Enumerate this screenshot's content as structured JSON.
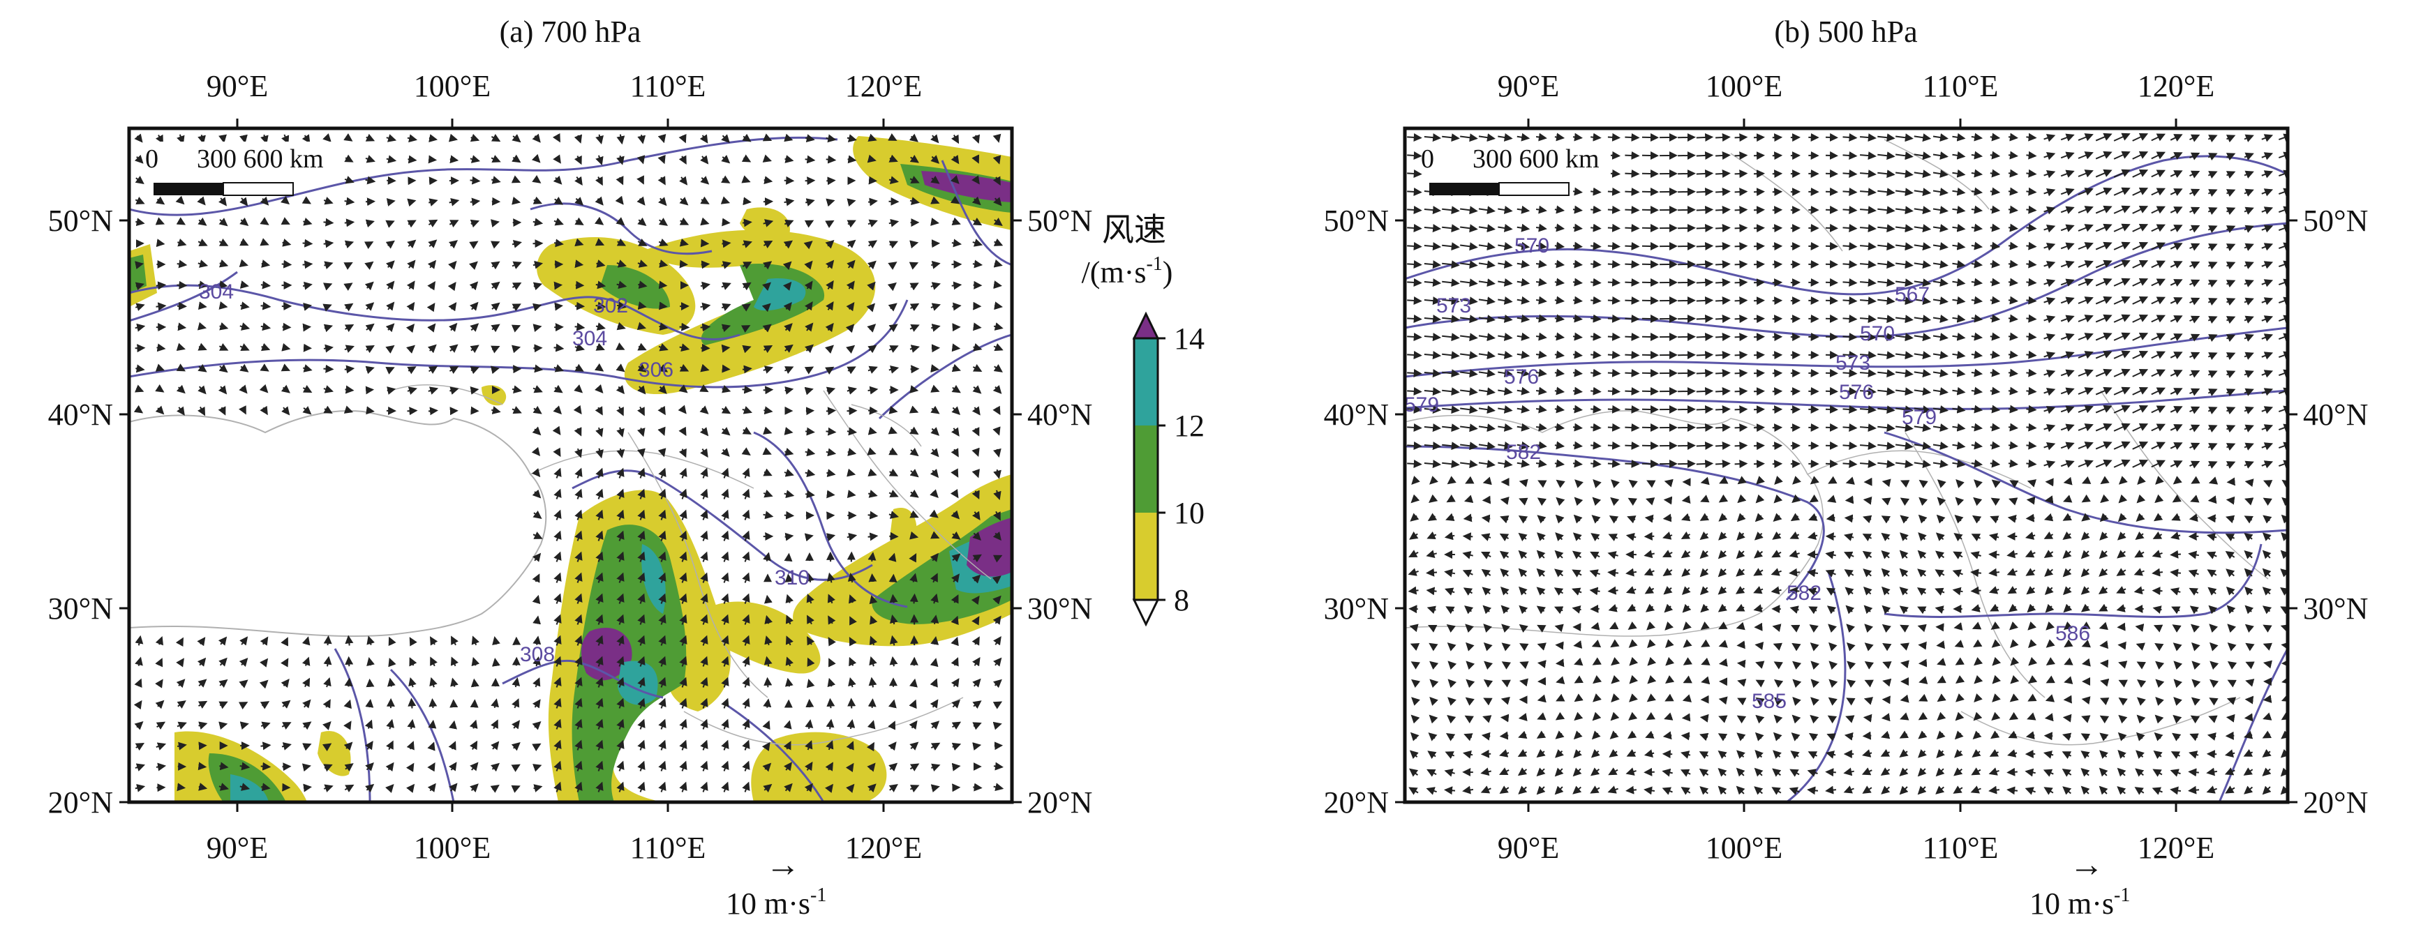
{
  "panels": [
    {
      "title": "(a) 700 hPa",
      "top_ticks": [
        "90°E",
        "100°E",
        "110°E",
        "120°E"
      ],
      "bottom_ticks": [
        "90°E",
        "100°E",
        "110°E",
        "120°E"
      ],
      "left_ticks": [
        "50°N",
        "40°N",
        "30°N",
        "20°N"
      ],
      "right_ticks": [
        "50°N",
        "40°N",
        "30°N",
        "20°N"
      ],
      "scale_bar": {
        "zero": "0",
        "label": "300 600 km"
      },
      "contour_labels": [
        "304",
        "302",
        "304",
        "306",
        "310",
        "308"
      ],
      "reference_vector": {
        "arrow": "→",
        "label": "10 m·s",
        "exp": "-1"
      }
    },
    {
      "title": "(b) 500 hPa",
      "top_ticks": [
        "90°E",
        "100°E",
        "110°E",
        "120°E"
      ],
      "bottom_ticks": [
        "90°E",
        "100°E",
        "110°E",
        "120°E"
      ],
      "left_ticks": [
        "50°N",
        "40°N",
        "30°N",
        "20°N"
      ],
      "right_ticks": [
        "50°N",
        "40°N",
        "30°N",
        "20°N"
      ],
      "scale_bar": {
        "zero": "0",
        "label": "300 600 km"
      },
      "contour_labels": [
        "570",
        "567",
        "573",
        "570",
        "576",
        "573",
        "576",
        "579",
        "579",
        "582",
        "582",
        "586",
        "585"
      ],
      "reference_vector": {
        "arrow": "→",
        "label": "10 m·s",
        "exp": "-1"
      }
    }
  ],
  "colorbar": {
    "title": "风速",
    "unit": "/(m·s",
    "unit_exp": "-1",
    "unit_close": ")",
    "ticks": [
      "14",
      "12",
      "10",
      "8"
    ],
    "colors": {
      "c8_10": "#d8cc2e",
      "c10_12": "#4f9c35",
      "c12_14": "#2fa39c",
      "c14_up": "#7a2f86"
    }
  },
  "colors": {
    "contour": "#5b56a8",
    "vector": "#222222",
    "boundary": "#b0b0b0",
    "terrain_mask": "#ffffff"
  }
}
